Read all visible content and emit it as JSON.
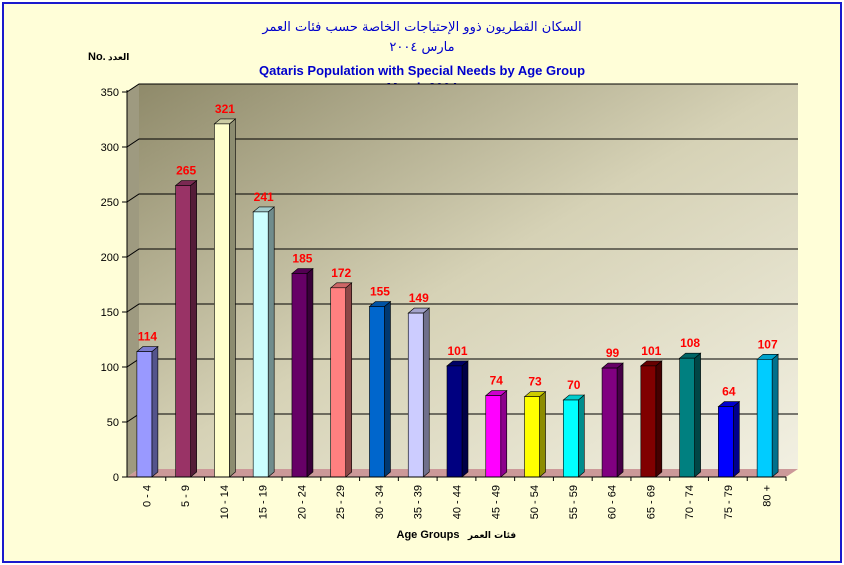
{
  "chart_data": {
    "type": "bar",
    "title_ar": "السكان القطريون ذوو الإحتياجات الخاصة حسب فئات العمر",
    "subtitle_ar": "مارس ٢٠٠٤",
    "title": "Qataris Population with Special Needs by Age Group",
    "subtitle": "March 2004",
    "ylabel": "No.",
    "ylabel_ar": "العدد",
    "xlabel": "Age Groups",
    "xlabel_ar": "فئات العمر",
    "ylim": [
      0,
      350
    ],
    "yticks": [
      0,
      50,
      100,
      150,
      200,
      250,
      300,
      350
    ],
    "grid": true,
    "categories": [
      "0 - 4",
      "5 - 9",
      "10 - 14",
      "15 - 19",
      "20 - 24",
      "25 - 29",
      "30 - 34",
      "35 - 39",
      "40 - 44",
      "45 - 49",
      "50 - 54",
      "55 - 59",
      "60 - 64",
      "65 - 69",
      "70 - 74",
      "75 - 79",
      "80 +"
    ],
    "values": [
      114,
      265,
      321,
      241,
      185,
      172,
      155,
      149,
      101,
      74,
      73,
      70,
      99,
      101,
      108,
      64,
      107
    ],
    "colors": [
      "#9999ff",
      "#993366",
      "#ffffcc",
      "#ccffff",
      "#660066",
      "#ff8080",
      "#0066cc",
      "#ccccff",
      "#000080",
      "#ff00ff",
      "#ffff00",
      "#00ffff",
      "#800080",
      "#800000",
      "#008080",
      "#0000ff",
      "#00ccff"
    ],
    "label_color": "#ff0000"
  }
}
